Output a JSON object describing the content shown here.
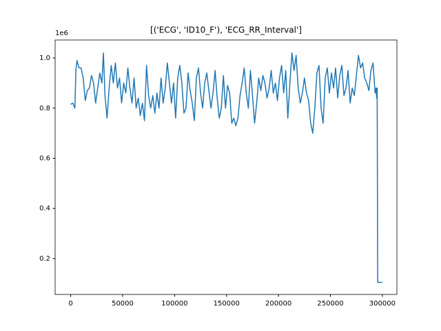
{
  "chart_data": {
    "type": "line",
    "title": "[('ECG', 'ID10_F'), 'ECG_RR_Interval']",
    "y_offset_label": "1e6",
    "x": [
      0,
      2000,
      4000,
      5000,
      6000,
      8000,
      10000,
      12000,
      14000,
      16000,
      18000,
      20000,
      22000,
      24000,
      26000,
      28000,
      30000,
      31500,
      33000,
      35000,
      37000,
      39000,
      41000,
      43000,
      45000,
      47000,
      49000,
      51000,
      53000,
      55000,
      57000,
      59000,
      61000,
      63000,
      65000,
      67000,
      69000,
      71000,
      73000,
      75000,
      77000,
      79000,
      81000,
      83000,
      85000,
      87000,
      89000,
      91000,
      93000,
      95000,
      97000,
      99000,
      101000,
      103000,
      105000,
      107000,
      109000,
      111000,
      113000,
      115000,
      117000,
      119000,
      121000,
      123000,
      125000,
      127000,
      129000,
      131000,
      133000,
      135000,
      137000,
      139000,
      141000,
      143000,
      145000,
      147000,
      149000,
      151000,
      153000,
      155000,
      157000,
      159000,
      161000,
      163000,
      165000,
      167000,
      169000,
      171000,
      173000,
      175000,
      177000,
      179000,
      181000,
      183000,
      185000,
      187000,
      189000,
      191000,
      193000,
      195000,
      197000,
      199000,
      201000,
      203000,
      205000,
      207000,
      209000,
      211000,
      213000,
      215000,
      217000,
      219000,
      221000,
      223000,
      225000,
      227000,
      229000,
      231000,
      233000,
      235000,
      237000,
      239000,
      241000,
      243000,
      245000,
      247000,
      249000,
      251000,
      253000,
      255000,
      257000,
      259000,
      261000,
      263000,
      265000,
      267000,
      269000,
      271000,
      273000,
      275000,
      277000,
      279000,
      281000,
      283000,
      285000,
      287000,
      289000,
      291000,
      293000,
      294000,
      294500,
      295000,
      295500,
      300000
    ],
    "series": [
      {
        "name": "ECG_RR_Interval",
        "color": "#1f77b4",
        "values": [
          0.815,
          0.82,
          0.8,
          0.95,
          0.99,
          0.96,
          0.96,
          0.92,
          0.83,
          0.87,
          0.88,
          0.93,
          0.9,
          0.82,
          0.88,
          0.94,
          0.9,
          1.02,
          0.85,
          0.76,
          0.88,
          0.97,
          0.9,
          0.98,
          0.88,
          0.92,
          0.82,
          0.9,
          0.86,
          0.96,
          0.88,
          0.82,
          0.92,
          0.8,
          0.84,
          0.77,
          0.82,
          0.75,
          0.97,
          0.85,
          0.8,
          0.85,
          0.78,
          0.86,
          0.8,
          0.92,
          0.82,
          0.88,
          0.98,
          0.9,
          0.82,
          0.9,
          0.76,
          0.92,
          0.97,
          0.9,
          0.78,
          0.8,
          0.94,
          0.87,
          0.82,
          0.75,
          0.92,
          0.96,
          0.86,
          0.8,
          0.9,
          0.94,
          0.87,
          0.8,
          0.86,
          0.95,
          0.84,
          0.76,
          0.8,
          0.93,
          0.8,
          0.89,
          0.86,
          0.74,
          0.76,
          0.73,
          0.76,
          0.85,
          0.9,
          0.96,
          0.86,
          0.8,
          0.95,
          0.85,
          0.74,
          0.82,
          0.92,
          0.87,
          0.93,
          0.9,
          0.84,
          0.88,
          0.95,
          0.86,
          0.9,
          0.83,
          0.92,
          0.97,
          0.86,
          0.95,
          0.76,
          0.9,
          1.02,
          0.95,
          1.01,
          0.88,
          0.82,
          0.86,
          0.92,
          0.86,
          0.83,
          0.74,
          0.7,
          0.8,
          0.94,
          0.97,
          0.8,
          0.74,
          0.92,
          0.96,
          0.86,
          0.94,
          0.88,
          0.96,
          0.84,
          0.93,
          0.97,
          0.85,
          0.88,
          0.95,
          0.82,
          0.88,
          0.85,
          0.93,
          1.01,
          0.96,
          0.98,
          0.92,
          0.9,
          0.87,
          0.95,
          0.98,
          0.86,
          0.88,
          0.84,
          0.88,
          0.105,
          0.105
        ]
      }
    ],
    "xlim": [
      -15000,
      314000
    ],
    "ylim": [
      0.057,
      1.0715
    ],
    "xticks": [
      0,
      50000,
      100000,
      150000,
      200000,
      250000,
      300000
    ],
    "yticks": [
      0.2,
      0.4,
      0.6,
      0.8,
      {
        "value": 1.0,
        "label": "1.0"
      }
    ],
    "grid": false
  }
}
